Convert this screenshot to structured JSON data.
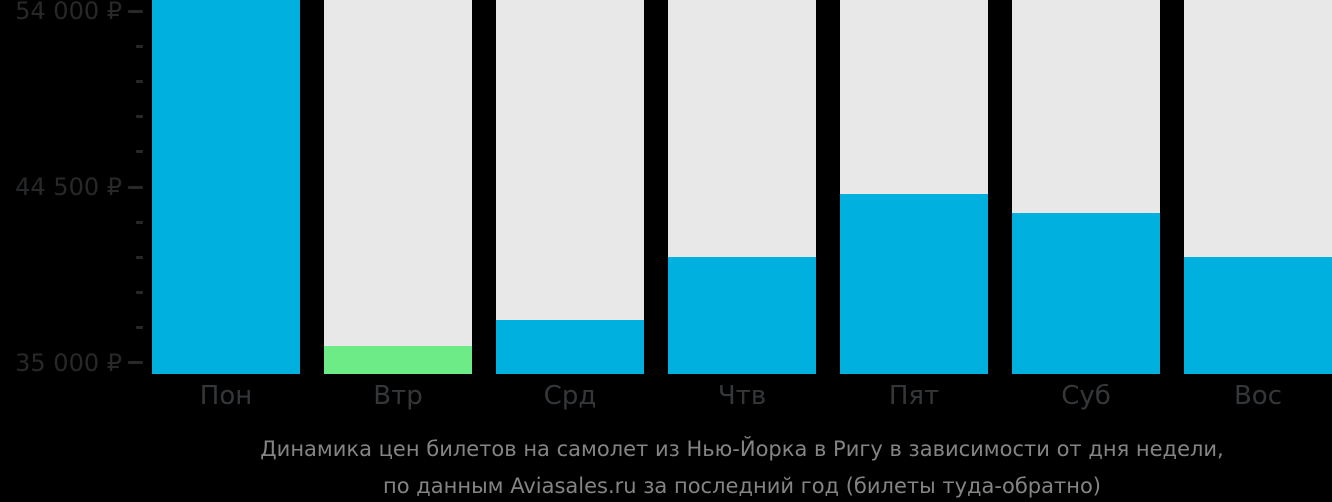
{
  "caption": {
    "line1": "Динамика цен билетов на самолет из Нью-Йорка в Ригу в зависимости от дня недели,",
    "line2": "по данным Aviasales.ru за последний год (билеты туда-обратно)"
  },
  "colors": {
    "background": "#000000",
    "bar_default": "#00b0de",
    "bar_cheapest": "#6ceb86",
    "column_track": "#e8e8e8",
    "axis_tick_text": "#26282a",
    "day_label_text": "#34373a",
    "caption_text": "#848484"
  },
  "chart_data": {
    "type": "bar",
    "title": "Динамика цен билетов на самолет из Нью-Йорка в Ригу в зависимости от дня недели, по данным Aviasales.ru за последний год (билеты туда-обратно)",
    "categories": [
      "Пон",
      "Втр",
      "Срд",
      "Чтв",
      "Пят",
      "Суб",
      "Вос"
    ],
    "values": [
      54600,
      35900,
      37300,
      40700,
      44100,
      43100,
      40700
    ],
    "unit": "₽",
    "highlight": {
      "category": "Втр",
      "reason": "cheapest-day",
      "color": "#6ceb86"
    },
    "ylim": [
      34400,
      54600
    ],
    "y_ticks_major": [
      {
        "value": 35000,
        "label": "35 000 ₽"
      },
      {
        "value": 44500,
        "label": "44 500 ₽"
      },
      {
        "value": 54000,
        "label": "54 000 ₽"
      }
    ],
    "y_tick_minor_step": 1900,
    "grid": false,
    "legend": false,
    "notes": "Monday (Пон) bar is clipped at the top edge of the chart; bars drawn over light-gray full-height column tracks on black background"
  }
}
